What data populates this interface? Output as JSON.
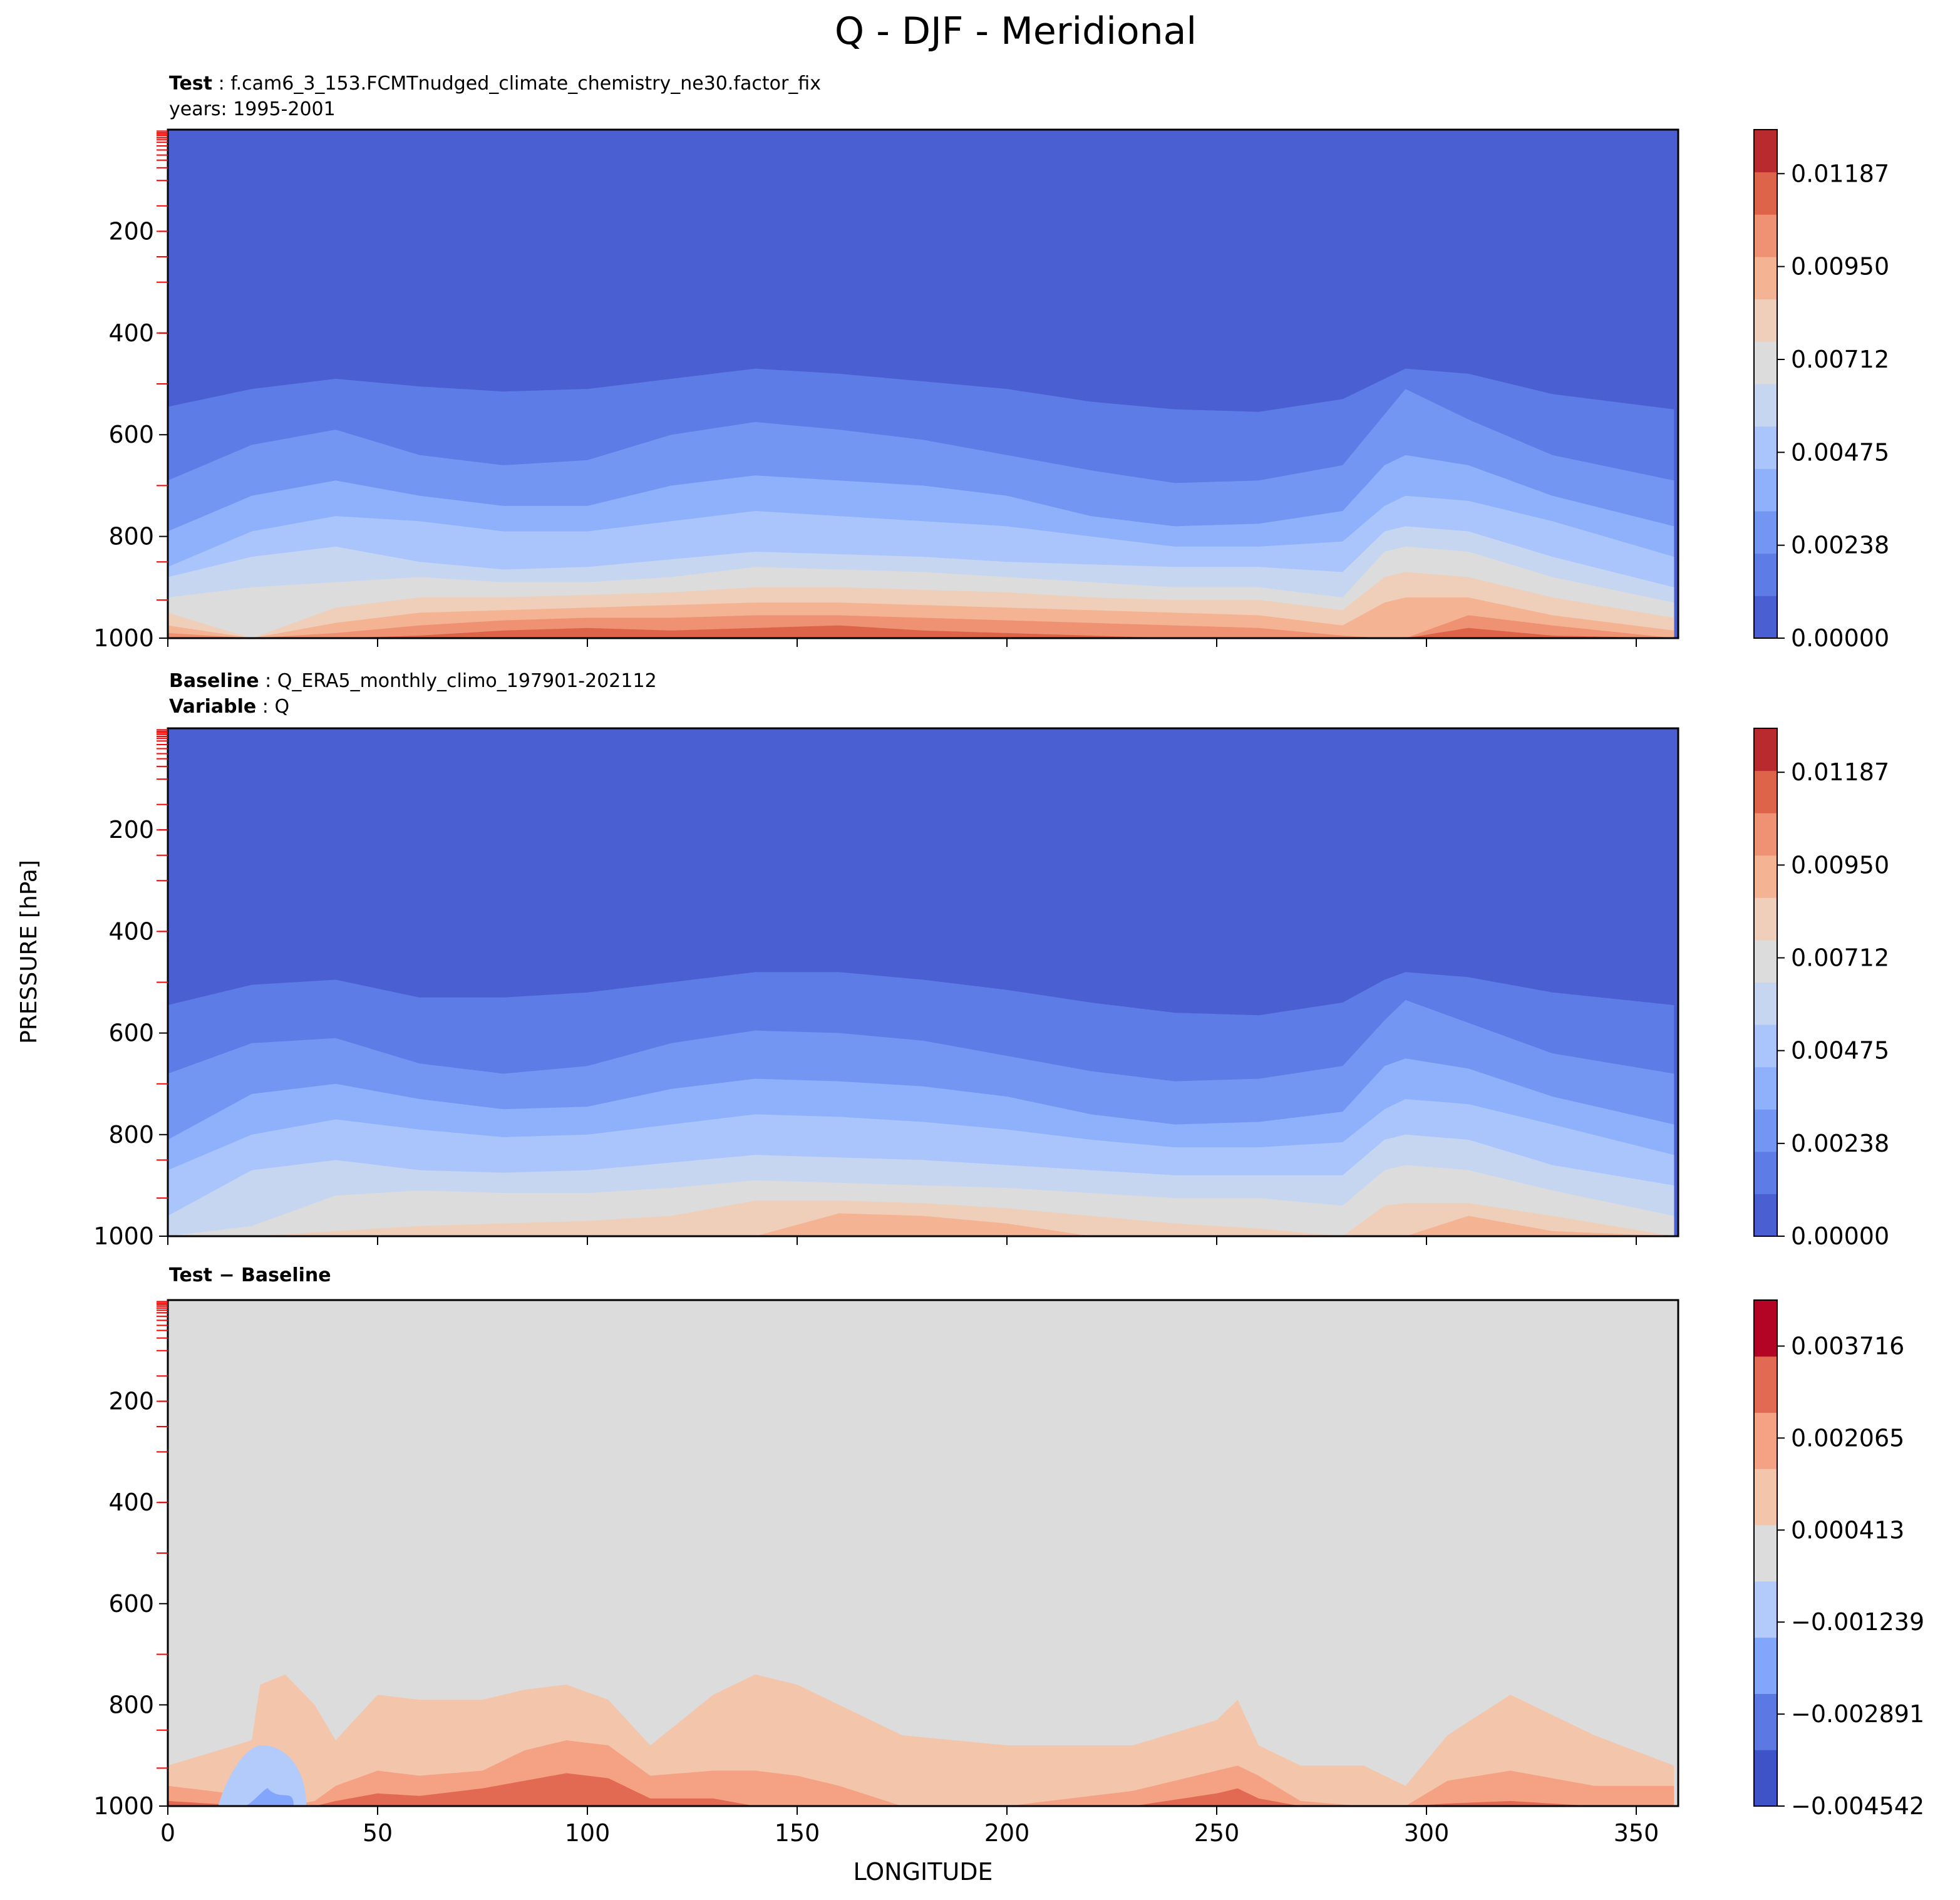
{
  "figure": {
    "suptitle": "Q - DJF - Meridional",
    "ylabel": "PRESSURE [hPa]",
    "xlabel": "LONGITUDE"
  },
  "panels": [
    {
      "header_lines": [
        {
          "bold": "Test",
          "sep": " : ",
          "text": "f.cam6_3_153.FCMTnudged_climate_chemistry_ne30.factor_fix"
        },
        {
          "bold": "",
          "sep": "",
          "text": "years: 1995-2001"
        }
      ]
    },
    {
      "header_lines": [
        {
          "bold": "Baseline",
          "sep": " : ",
          "text": "Q_ERA5_monthly_climo_197901-202112"
        },
        {
          "bold": "Variable",
          "sep": " : ",
          "text": "Q"
        }
      ]
    },
    {
      "header_lines": [
        {
          "bold": "Test − Baseline",
          "sep": "",
          "text": ""
        }
      ]
    }
  ],
  "colors": {
    "field_levels_11": [
      "#4a5fd2",
      "#5d7ce6",
      "#7396f2",
      "#8fb0fb",
      "#aac5fb",
      "#c6d6f1",
      "#dcdcdc",
      "#efcfba",
      "#f4b393",
      "#ef9273",
      "#dd6448",
      "#b82a2d"
    ],
    "diff_levels": [
      "#3f53c8",
      "#5b78e3",
      "#82a6fb",
      "#b2cbfb",
      "#dcdcdc",
      "#f3c6ab",
      "#f5a284",
      "#e26952",
      "#b40426"
    ],
    "diff_bg": "#dcdcdc",
    "model_top_tick": "#ff0000"
  },
  "chart_data": [
    {
      "type": "heatmap",
      "title": "Test",
      "x": {
        "label": "LONGITUDE",
        "range": [
          0,
          360
        ],
        "ticks": [
          0,
          50,
          100,
          150,
          200,
          250,
          300,
          350
        ]
      },
      "y": {
        "label": "PRESSURE [hPa]",
        "range": [
          1000,
          0
        ],
        "ticks": [
          200,
          400,
          600,
          800,
          1000
        ],
        "inverted": true
      },
      "colorbar": {
        "levels_count": 11,
        "range": [
          0.0,
          0.013
        ],
        "tick_labels": [
          "0.00000",
          "0.00238",
          "0.00475",
          "0.00712",
          "0.00950",
          "0.01187"
        ],
        "tick_values": [
          0.0,
          0.002375,
          0.00475,
          0.007125,
          0.0095,
          0.011875
        ]
      },
      "contours_pressure_hPa": {
        "lon": [
          0,
          20,
          40,
          60,
          80,
          100,
          120,
          140,
          160,
          180,
          200,
          220,
          240,
          260,
          280,
          290,
          295,
          310,
          330,
          359
        ],
        "lev_0.0012": [
          545,
          510,
          490,
          505,
          515,
          510,
          490,
          470,
          480,
          495,
          510,
          535,
          550,
          555,
          530,
          490,
          470,
          480,
          520,
          550
        ],
        "lev_0.0024": [
          690,
          620,
          590,
          640,
          660,
          650,
          600,
          575,
          590,
          610,
          640,
          670,
          695,
          690,
          660,
          560,
          510,
          570,
          640,
          690
        ],
        "lev_0.0036": [
          790,
          720,
          690,
          720,
          740,
          740,
          700,
          680,
          690,
          700,
          720,
          760,
          780,
          775,
          750,
          660,
          640,
          660,
          720,
          780
        ],
        "lev_0.0048": [
          860,
          790,
          760,
          770,
          790,
          790,
          770,
          750,
          760,
          770,
          780,
          800,
          820,
          820,
          810,
          740,
          720,
          730,
          770,
          840
        ],
        "lev_0.0059": [
          880,
          840,
          820,
          850,
          865,
          860,
          845,
          830,
          835,
          840,
          850,
          855,
          860,
          860,
          870,
          790,
          780,
          790,
          840,
          900
        ],
        "lev_0.0071": [
          920,
          900,
          890,
          880,
          890,
          890,
          880,
          860,
          865,
          870,
          880,
          890,
          900,
          900,
          920,
          830,
          820,
          830,
          880,
          930
        ],
        "lev_0.0083": [
          950,
          1000,
          940,
          920,
          920,
          915,
          910,
          900,
          900,
          905,
          910,
          920,
          925,
          925,
          945,
          880,
          870,
          880,
          920,
          960
        ],
        "lev_0.0095": [
          975,
          1000,
          970,
          950,
          945,
          940,
          935,
          930,
          930,
          935,
          940,
          945,
          950,
          955,
          975,
          930,
          920,
          920,
          955,
          985
        ],
        "lev_0.0107": [
          990,
          1000,
          990,
          975,
          965,
          960,
          960,
          955,
          955,
          960,
          965,
          970,
          975,
          980,
          995,
          1000,
          1000,
          955,
          975,
          1000
        ],
        "lev_0.0119": [
          1000,
          1000,
          1000,
          995,
          985,
          980,
          985,
          980,
          975,
          985,
          990,
          995,
          1000,
          1000,
          1000,
          1000,
          1000,
          980,
          995,
          1000
        ]
      }
    },
    {
      "type": "heatmap",
      "title": "Baseline",
      "x": {
        "label": "LONGITUDE",
        "range": [
          0,
          360
        ],
        "ticks": [
          0,
          50,
          100,
          150,
          200,
          250,
          300,
          350
        ]
      },
      "y": {
        "label": "PRESSURE [hPa]",
        "range": [
          1000,
          0
        ],
        "ticks": [
          200,
          400,
          600,
          800,
          1000
        ],
        "inverted": true
      },
      "colorbar": {
        "levels_count": 11,
        "range": [
          0.0,
          0.013
        ],
        "tick_labels": [
          "0.00000",
          "0.00238",
          "0.00475",
          "0.00712",
          "0.00950",
          "0.01187"
        ],
        "tick_values": [
          0.0,
          0.002375,
          0.00475,
          0.007125,
          0.0095,
          0.011875
        ]
      },
      "contours_pressure_hPa": {
        "lon": [
          0,
          20,
          40,
          60,
          80,
          100,
          120,
          140,
          160,
          180,
          200,
          220,
          240,
          260,
          280,
          290,
          295,
          310,
          330,
          359
        ],
        "lev_0.0012": [
          545,
          505,
          495,
          530,
          530,
          520,
          500,
          480,
          480,
          495,
          515,
          540,
          560,
          565,
          540,
          495,
          480,
          490,
          520,
          545
        ],
        "lev_0.0024": [
          680,
          620,
          610,
          660,
          680,
          665,
          620,
          595,
          600,
          615,
          645,
          675,
          695,
          690,
          665,
          575,
          535,
          580,
          640,
          680
        ],
        "lev_0.0036": [
          810,
          720,
          700,
          730,
          750,
          745,
          710,
          690,
          695,
          705,
          725,
          760,
          780,
          775,
          755,
          665,
          650,
          670,
          725,
          780
        ],
        "lev_0.0048": [
          870,
          800,
          770,
          790,
          805,
          800,
          780,
          760,
          765,
          775,
          790,
          810,
          825,
          825,
          815,
          750,
          730,
          740,
          780,
          840
        ],
        "lev_0.0059": [
          960,
          870,
          850,
          870,
          875,
          870,
          855,
          840,
          845,
          850,
          860,
          870,
          880,
          880,
          880,
          810,
          800,
          810,
          860,
          900
        ],
        "lev_0.0071": [
          1000,
          980,
          920,
          910,
          915,
          915,
          905,
          890,
          895,
          900,
          905,
          915,
          925,
          925,
          940,
          870,
          860,
          870,
          910,
          960
        ],
        "lev_0.0083": [
          1000,
          1000,
          990,
          980,
          975,
          970,
          960,
          930,
          930,
          935,
          945,
          960,
          975,
          985,
          1000,
          940,
          935,
          935,
          960,
          1000
        ],
        "lev_0.0095": [
          1000,
          1000,
          1000,
          1000,
          1000,
          1000,
          1000,
          1000,
          955,
          960,
          975,
          1000,
          1000,
          1000,
          1000,
          1000,
          1000,
          960,
          990,
          1000
        ]
      }
    },
    {
      "type": "heatmap",
      "title": "Test − Baseline",
      "x": {
        "label": "LONGITUDE",
        "range": [
          0,
          360
        ],
        "ticks": [
          0,
          50,
          100,
          150,
          200,
          250,
          300,
          350
        ]
      },
      "y": {
        "label": "PRESSURE [hPa]",
        "range": [
          1000,
          0
        ],
        "ticks": [
          200,
          400,
          600,
          800,
          1000
        ],
        "inverted": true
      },
      "colorbar": {
        "range": [
          -0.004542,
          0.004542
        ],
        "tick_labels": [
          "−0.004542",
          "−0.002891",
          "−0.001239",
          "0.000413",
          "0.002065",
          "0.003716"
        ],
        "tick_values": [
          -0.004542,
          -0.002891,
          -0.001239,
          0.000413,
          0.002065,
          0.003716
        ]
      },
      "positive_contours_pressure_hPa": {
        "lon": [
          0,
          20,
          22,
          28,
          35,
          40,
          50,
          60,
          75,
          85,
          95,
          105,
          115,
          130,
          140,
          150,
          160,
          175,
          200,
          230,
          250,
          255,
          260,
          270,
          285,
          295,
          305,
          320,
          340,
          359
        ],
        "lev_0.0004": [
          920,
          870,
          760,
          740,
          800,
          870,
          780,
          790,
          790,
          770,
          760,
          790,
          880,
          780,
          740,
          760,
          800,
          860,
          880,
          880,
          830,
          790,
          880,
          920,
          920,
          960,
          860,
          780,
          860,
          920
        ],
        "lev_0.0021": [
          960,
          980,
          1000,
          1000,
          990,
          960,
          930,
          940,
          930,
          890,
          870,
          880,
          940,
          930,
          930,
          940,
          960,
          1000,
          1000,
          970,
          930,
          920,
          940,
          990,
          1000,
          1000,
          950,
          930,
          960,
          960
        ],
        "lev_0.0037": [
          990,
          1000,
          1000,
          1000,
          1000,
          990,
          975,
          980,
          965,
          950,
          935,
          945,
          985,
          985,
          1000,
          1000,
          1000,
          1000,
          1000,
          1000,
          975,
          965,
          985,
          1000,
          1000,
          1000,
          995,
          990,
          1000,
          1000
        ]
      },
      "negative_region": {
        "lon_range": [
          12,
          33
        ],
        "pressure_range": [
          880,
          1000
        ],
        "min_value": -0.0021
      }
    }
  ]
}
